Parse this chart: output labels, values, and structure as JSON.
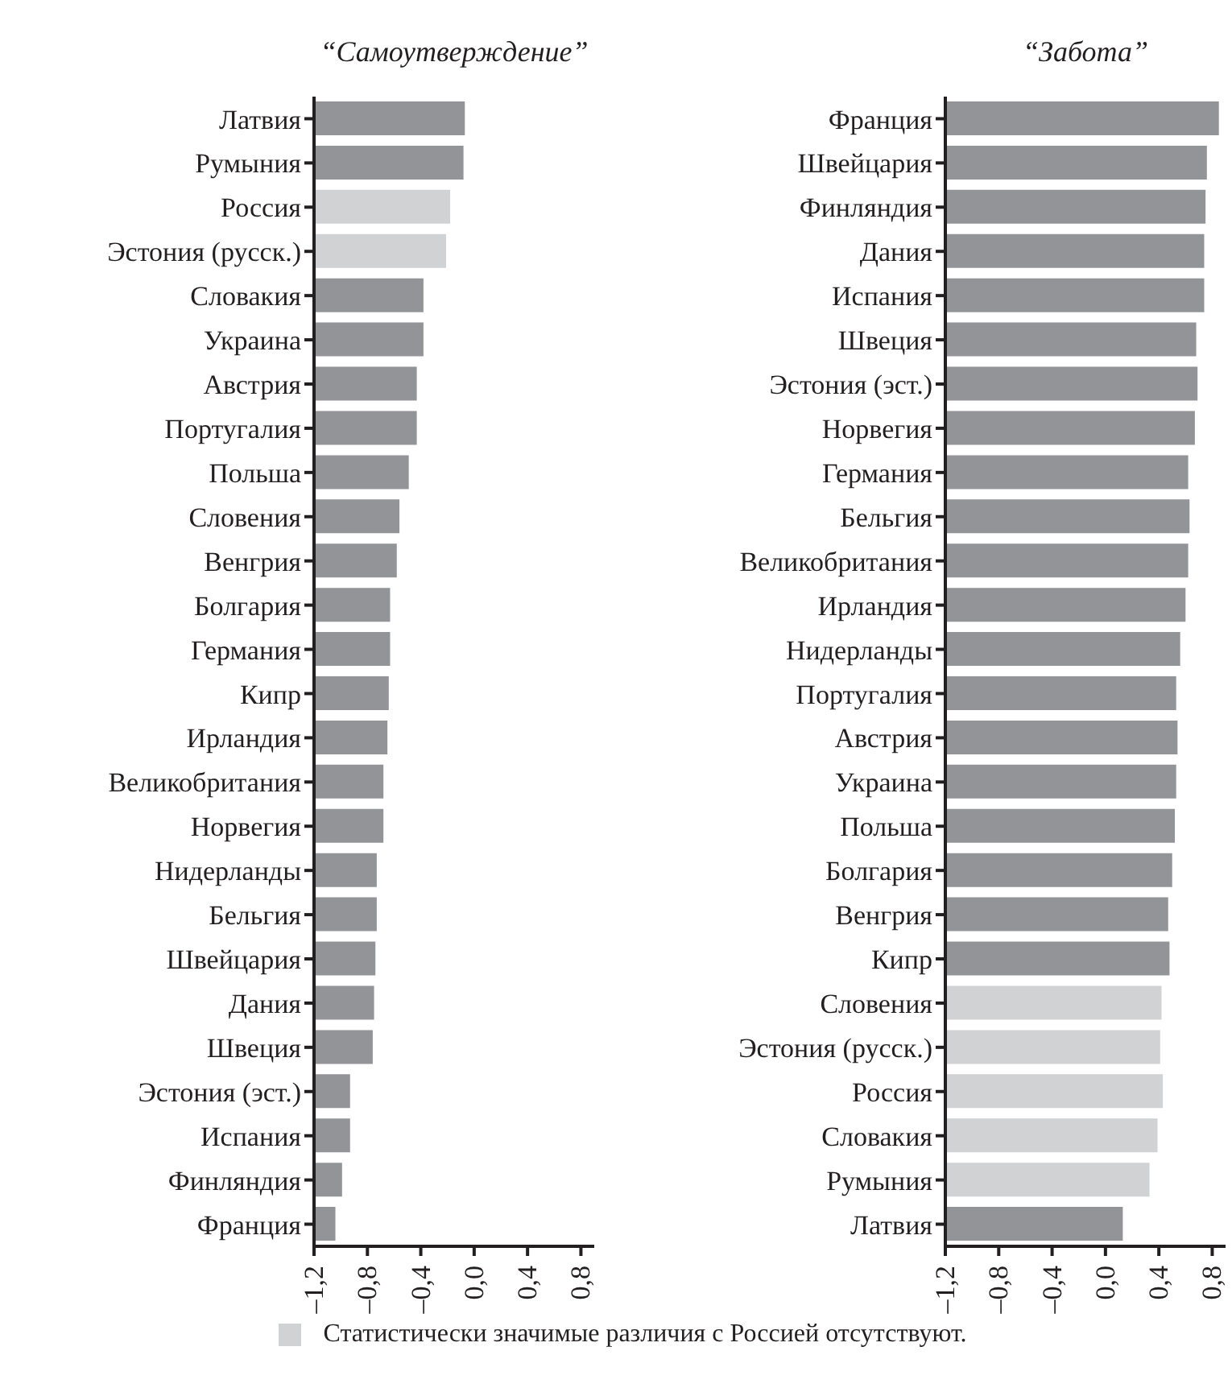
{
  "chart_data": [
    {
      "type": "bar",
      "orientation": "horizontal",
      "title": "“Самоутверждение”",
      "categories": [
        "Латвия",
        "Румыния",
        "Россия",
        "Эстония (русск.)",
        "Словакия",
        "Украина",
        "Австрия",
        "Португалия",
        "Польша",
        "Словения",
        "Венгрия",
        "Болгария",
        "Германия",
        "Кипр",
        "Ирландия",
        "Великобритания",
        "Норвегия",
        "Нидерланды",
        "Бельгия",
        "Швейцария",
        "Дания",
        "Швеция",
        "Эстония (эст.)",
        "Испания",
        "Финляндия",
        "Франция"
      ],
      "values": [
        1.13,
        1.12,
        1.02,
        0.99,
        0.82,
        0.82,
        0.77,
        0.77,
        0.71,
        0.64,
        0.62,
        0.57,
        0.57,
        0.56,
        0.55,
        0.52,
        0.52,
        0.47,
        0.47,
        0.46,
        0.45,
        0.44,
        0.27,
        0.27,
        0.21,
        0.16
      ],
      "base": [
        -1.2,
        -1.2,
        -1.2,
        -1.2,
        -1.2,
        -1.2,
        -1.2,
        -1.2,
        -1.2,
        -1.2,
        -1.2,
        -1.2,
        -1.2,
        -1.2,
        -1.2,
        -1.2,
        -1.2,
        -1.2,
        -1.2,
        -1.2,
        -1.2,
        -1.2,
        -1.2,
        -1.2,
        -1.2,
        -1.2
      ],
      "colors": [
        "#939497",
        "#939497",
        "#d1d2d4",
        "#d1d2d4",
        "#939497",
        "#939497",
        "#939497",
        "#939497",
        "#939497",
        "#939497",
        "#939497",
        "#939497",
        "#939497",
        "#939497",
        "#939497",
        "#939497",
        "#939497",
        "#939497",
        "#939497",
        "#939497",
        "#939497",
        "#939497",
        "#939497",
        "#939497",
        "#939497",
        "#939497"
      ],
      "xlim": [
        -1.2,
        0.9
      ],
      "xticks": [
        {
          "value": -1.2,
          "label": "–1,2"
        },
        {
          "value": -0.8,
          "label": "–0,8"
        },
        {
          "value": -0.4,
          "label": "–0,4"
        },
        {
          "value": 0,
          "label": "0,0"
        },
        {
          "value": 0.4,
          "label": "0,4"
        },
        {
          "value": 0.8,
          "label": "0,8"
        }
      ],
      "annotations": [
        "Статистически значимые различия с Россией отсутствуют."
      ]
    },
    {
      "type": "bar",
      "orientation": "horizontal",
      "title": "“Забота”",
      "categories": [
        "Франция",
        "Швейцария",
        "Финляндия",
        "Дания",
        "Испания",
        "Швеция",
        "Эстония (эст.)",
        "Норвегия",
        "Германия",
        "Бельгия",
        "Великобритания",
        "Ирландия",
        "Нидерланды",
        "Португалия",
        "Австрия",
        "Украина",
        "Польша",
        "Болгария",
        "Венгрия",
        "Кипр",
        "Словения",
        "Эстония (русск.)",
        "Россия",
        "Словакия",
        "Румыния",
        "Латвия"
      ],
      "values": [
        2.05,
        1.96,
        1.95,
        1.94,
        1.94,
        1.88,
        1.89,
        1.87,
        1.82,
        1.83,
        1.82,
        1.8,
        1.76,
        1.73,
        1.74,
        1.73,
        1.72,
        1.7,
        1.67,
        1.68,
        1.62,
        1.61,
        1.63,
        1.59,
        1.53,
        1.33
      ],
      "base": [
        -1.2,
        -1.2,
        -1.2,
        -1.2,
        -1.2,
        -1.2,
        -1.2,
        -1.2,
        -1.2,
        -1.2,
        -1.2,
        -1.2,
        -1.2,
        -1.2,
        -1.2,
        -1.2,
        -1.2,
        -1.2,
        -1.2,
        -1.2,
        -1.2,
        -1.2,
        -1.2,
        -1.2,
        -1.2,
        -1.2
      ],
      "colors": [
        "#939497",
        "#939497",
        "#939497",
        "#939497",
        "#939497",
        "#939497",
        "#939497",
        "#939497",
        "#939497",
        "#939497",
        "#939497",
        "#939497",
        "#939497",
        "#939497",
        "#939497",
        "#939497",
        "#939497",
        "#939497",
        "#939497",
        "#939497",
        "#d1d2d4",
        "#d1d2d4",
        "#d1d2d4",
        "#d1d2d4",
        "#d1d2d4",
        "#939497"
      ],
      "xlim": [
        -1.2,
        0.9
      ],
      "xticks": [
        {
          "value": -1.2,
          "label": "–1,2"
        },
        {
          "value": -0.8,
          "label": "–0,8"
        },
        {
          "value": -0.4,
          "label": "–0,4"
        },
        {
          "value": 0,
          "label": "0,0"
        },
        {
          "value": 0.4,
          "label": "0,4"
        },
        {
          "value": 0.8,
          "label": "0,8"
        }
      ]
    }
  ]
}
